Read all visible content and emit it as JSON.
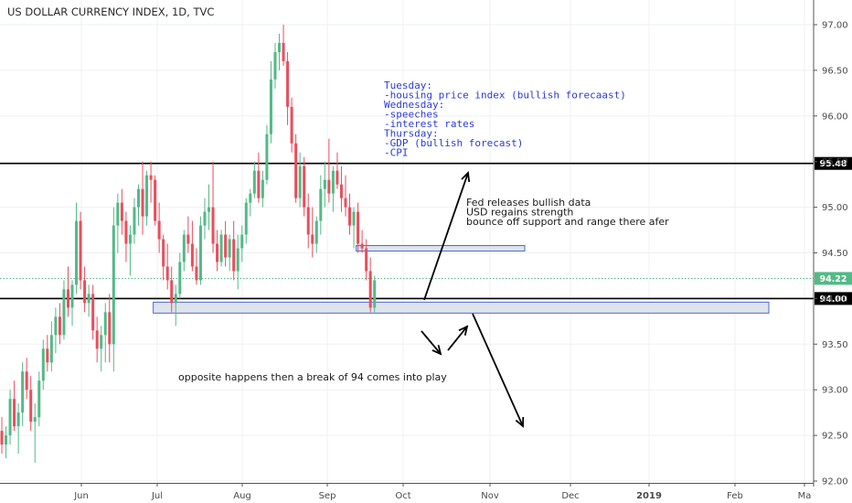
{
  "chart_data": {
    "type": "candlestick",
    "title": "US DOLLAR CURRENCY INDEX, 1D, TVC",
    "x_tick_labels": [
      "Jun",
      "Jul",
      "Aug",
      "Sep",
      "Oct",
      "Nov",
      "Dec",
      "2019",
      "Feb",
      "Ma"
    ],
    "y_tick_labels": [
      "92.00",
      "92.50",
      "93.00",
      "93.50",
      "94.00",
      "94.50",
      "95.00",
      "95.50",
      "96.00",
      "96.50",
      "97.00"
    ],
    "ylim": [
      92.0,
      97.0
    ],
    "grid": true,
    "colors": {
      "up": "#53b987",
      "down": "#eb4d5c",
      "level_line": "#000000",
      "current_line": "#53b987",
      "zone_fill": "#dfe3ea",
      "zone_border": "#4a6bd6",
      "note_blue": "#2a3bd8"
    },
    "candles": [
      [
        92.55,
        92.7,
        92.3,
        92.4
      ],
      [
        92.4,
        92.6,
        92.25,
        92.5
      ],
      [
        92.5,
        93.0,
        92.4,
        92.9
      ],
      [
        92.9,
        93.1,
        92.55,
        92.6
      ],
      [
        92.6,
        92.85,
        92.3,
        92.75
      ],
      [
        92.75,
        93.3,
        92.6,
        93.2
      ],
      [
        93.2,
        93.35,
        92.9,
        93.0
      ],
      [
        93.0,
        93.15,
        92.55,
        92.65
      ],
      [
        92.65,
        92.85,
        92.2,
        92.7
      ],
      [
        92.7,
        93.2,
        92.6,
        93.1
      ],
      [
        93.1,
        93.55,
        93.0,
        93.45
      ],
      [
        93.45,
        93.6,
        93.2,
        93.3
      ],
      [
        93.3,
        93.75,
        93.2,
        93.6
      ],
      [
        93.6,
        93.9,
        93.4,
        93.8
      ],
      [
        93.8,
        93.95,
        93.5,
        93.6
      ],
      [
        93.6,
        94.2,
        93.55,
        94.1
      ],
      [
        94.1,
        94.35,
        93.8,
        93.9
      ],
      [
        93.9,
        94.2,
        93.7,
        94.15
      ],
      [
        94.15,
        95.05,
        94.05,
        94.85
      ],
      [
        94.85,
        94.95,
        94.1,
        94.2
      ],
      [
        94.2,
        94.35,
        93.85,
        93.95
      ],
      [
        93.95,
        94.15,
        93.8,
        94.05
      ],
      [
        94.05,
        94.15,
        93.55,
        93.65
      ],
      [
        93.65,
        93.8,
        93.3,
        93.45
      ],
      [
        93.45,
        93.7,
        93.2,
        93.6
      ],
      [
        93.6,
        93.95,
        93.3,
        93.85
      ],
      [
        93.85,
        94.05,
        93.3,
        93.5
      ],
      [
        93.5,
        95.0,
        93.2,
        94.8
      ],
      [
        94.8,
        95.15,
        94.5,
        95.05
      ],
      [
        95.05,
        95.2,
        94.7,
        94.85
      ],
      [
        94.85,
        94.95,
        94.4,
        94.6
      ],
      [
        94.6,
        94.8,
        94.25,
        94.7
      ],
      [
        94.7,
        95.1,
        94.6,
        95.0
      ],
      [
        95.0,
        95.25,
        94.8,
        95.2
      ],
      [
        95.2,
        95.5,
        94.7,
        94.9
      ],
      [
        94.9,
        95.4,
        94.8,
        95.35
      ],
      [
        95.35,
        95.5,
        95.05,
        95.3
      ],
      [
        95.3,
        95.35,
        94.8,
        94.85
      ],
      [
        94.85,
        95.05,
        94.5,
        94.65
      ],
      [
        94.65,
        94.7,
        94.2,
        94.35
      ],
      [
        94.35,
        94.6,
        94.1,
        94.2
      ],
      [
        94.2,
        94.35,
        93.85,
        93.95
      ],
      [
        93.95,
        94.15,
        93.7,
        94.05
      ],
      [
        94.05,
        94.5,
        94.0,
        94.4
      ],
      [
        94.4,
        94.75,
        94.3,
        94.7
      ],
      [
        94.7,
        94.9,
        94.5,
        94.6
      ],
      [
        94.6,
        94.85,
        94.3,
        94.35
      ],
      [
        94.35,
        94.55,
        94.15,
        94.2
      ],
      [
        94.2,
        94.9,
        94.15,
        94.8
      ],
      [
        94.8,
        95.1,
        94.65,
        94.95
      ],
      [
        94.95,
        95.25,
        94.75,
        95.0
      ],
      [
        95.0,
        95.5,
        94.5,
        94.6
      ],
      [
        94.6,
        94.75,
        94.3,
        94.4
      ],
      [
        94.4,
        94.75,
        94.35,
        94.7
      ],
      [
        94.7,
        94.85,
        94.35,
        94.45
      ],
      [
        94.45,
        94.7,
        94.3,
        94.65
      ],
      [
        94.65,
        94.85,
        94.2,
        94.3
      ],
      [
        94.3,
        94.7,
        94.1,
        94.55
      ],
      [
        94.55,
        94.8,
        94.4,
        94.7
      ],
      [
        94.7,
        95.1,
        94.6,
        95.05
      ],
      [
        95.05,
        95.2,
        94.9,
        95.15
      ],
      [
        95.15,
        95.5,
        95.1,
        95.4
      ],
      [
        95.4,
        95.6,
        95.05,
        95.1
      ],
      [
        95.1,
        95.4,
        95.0,
        95.3
      ],
      [
        95.3,
        95.9,
        95.25,
        95.8
      ],
      [
        95.8,
        96.6,
        95.7,
        96.4
      ],
      [
        96.4,
        96.8,
        96.3,
        96.7
      ],
      [
        96.7,
        96.9,
        96.5,
        96.8
      ],
      [
        96.8,
        97.0,
        96.55,
        96.6
      ],
      [
        96.6,
        96.7,
        95.9,
        96.1
      ],
      [
        96.1,
        96.2,
        95.6,
        95.7
      ],
      [
        95.7,
        95.8,
        95.05,
        95.1
      ],
      [
        95.1,
        95.6,
        95.0,
        95.45
      ],
      [
        95.45,
        95.55,
        94.9,
        95.0
      ],
      [
        95.0,
        95.15,
        94.55,
        94.7
      ],
      [
        94.7,
        95.0,
        94.45,
        94.6
      ],
      [
        94.6,
        94.9,
        94.5,
        94.85
      ],
      [
        94.85,
        95.35,
        94.7,
        95.2
      ],
      [
        95.2,
        95.5,
        95.0,
        95.3
      ],
      [
        95.3,
        95.75,
        95.05,
        95.15
      ],
      [
        95.15,
        95.45,
        94.95,
        95.4
      ],
      [
        95.4,
        95.6,
        95.2,
        95.25
      ],
      [
        95.25,
        95.45,
        94.95,
        95.1
      ],
      [
        95.1,
        95.35,
        94.9,
        95.0
      ],
      [
        95.0,
        95.15,
        94.7,
        94.8
      ],
      [
        94.8,
        95.0,
        94.55,
        94.95
      ],
      [
        94.95,
        95.05,
        94.5,
        94.6
      ],
      [
        94.6,
        94.75,
        94.5,
        94.55
      ],
      [
        94.55,
        94.65,
        94.2,
        94.3
      ],
      [
        94.3,
        94.45,
        93.85,
        93.9
      ],
      [
        93.9,
        94.25,
        93.85,
        94.2
      ]
    ],
    "horizontal_levels": [
      {
        "value": 95.48,
        "label": "95.48"
      },
      {
        "value": 94.0,
        "label": "94.00"
      }
    ],
    "current_price": {
      "value": 94.22,
      "label": "94.22"
    },
    "zones": [
      {
        "top": 94.58,
        "bottom": 94.52,
        "start_index": 86,
        "end_date": "Nov 15"
      },
      {
        "top": 93.96,
        "bottom": 93.84,
        "start_index": 37,
        "end_date": "Feb 18"
      }
    ],
    "annotations": {
      "schedule": [
        "Tuesday:",
        " -housing price index (bullish forecaast)",
        "Wednesday:",
        " -speeches",
        " -interest rates",
        "Thursday:",
        " -GDP (bullish forecast)",
        " -CPI"
      ],
      "bullish": [
        "Fed releases bullish data",
        "USD regains strength",
        "bounce off support and range there afer"
      ],
      "bearish": [
        "opposite happens then a break of 94 comes into play"
      ]
    }
  }
}
